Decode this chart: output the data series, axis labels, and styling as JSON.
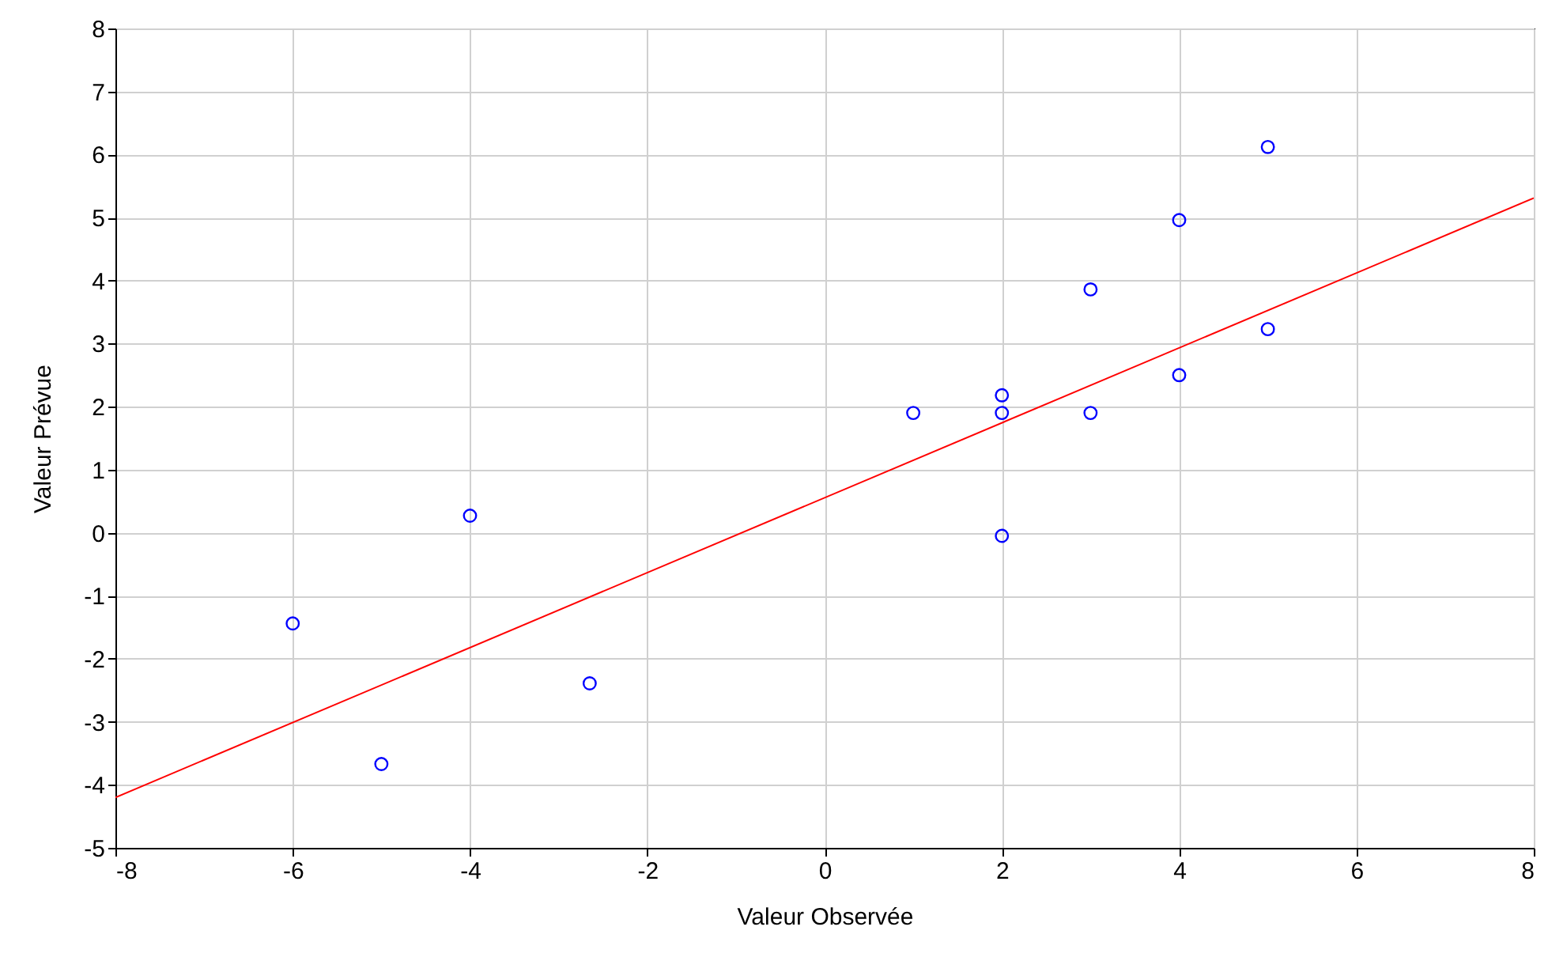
{
  "chart_data": {
    "type": "scatter",
    "xlabel": "Valeur Observée",
    "ylabel": "Valeur Prévue",
    "xlim": [
      -8,
      8
    ],
    "ylim": [
      -5,
      8
    ],
    "xticks": [
      -8,
      -6,
      -4,
      -2,
      0,
      2,
      4,
      6,
      8
    ],
    "yticks": [
      -5,
      -4,
      -3,
      -2,
      -1,
      0,
      1,
      2,
      3,
      4,
      5,
      6,
      7,
      8
    ],
    "grid": true,
    "series": [
      {
        "marker": "circle",
        "color": "#0000ff",
        "x": [
          -6,
          -5,
          -4,
          -2.65,
          1,
          2,
          2,
          2,
          3,
          3,
          4,
          4,
          5,
          5
        ],
        "values": [
          -1.44,
          -3.67,
          0.27,
          -2.39,
          1.9,
          2.18,
          1.9,
          -0.05,
          3.86,
          1.9,
          4.96,
          2.5,
          6.12,
          3.23
        ]
      },
      {
        "type": "line",
        "color": "#ff0000",
        "x": [
          -8,
          8
        ],
        "values": [
          -4.2,
          5.31
        ]
      }
    ]
  }
}
